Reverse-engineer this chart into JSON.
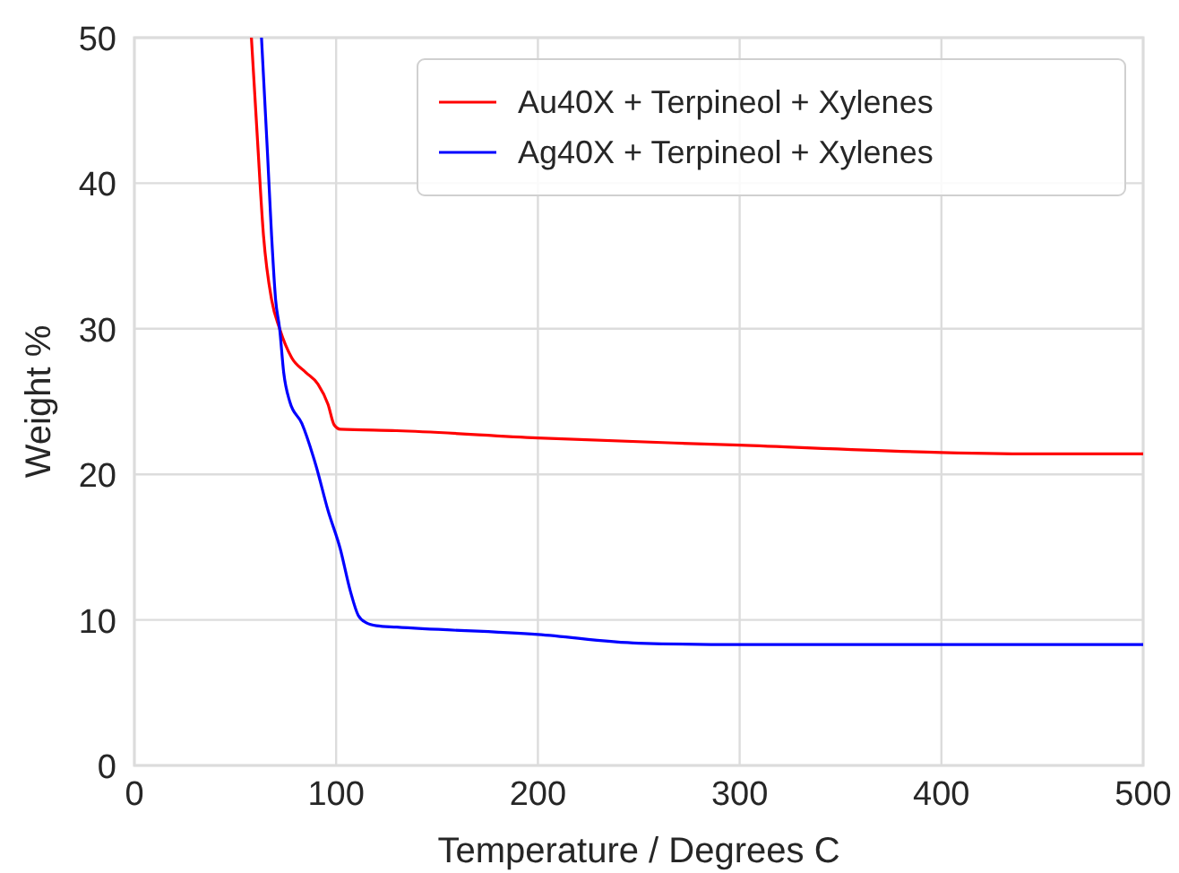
{
  "chart_data": {
    "type": "line",
    "xlabel": "Temperature / Degrees C",
    "ylabel": "Weight %",
    "xlim": [
      0,
      500
    ],
    "ylim": [
      0,
      50
    ],
    "xticks": [
      0,
      100,
      200,
      300,
      400,
      500
    ],
    "yticks": [
      0,
      10,
      20,
      30,
      40,
      50
    ],
    "grid": true,
    "legend": "top right",
    "marker": "none",
    "line_style": "solid",
    "series": [
      {
        "name": "Au40X + Terpineol + Xylenes",
        "color": "#ff0000",
        "x": [
          58,
          61,
          64,
          68,
          72,
          78,
          85,
          91,
          96,
          99,
          102,
          130,
          200,
          300,
          400,
          450,
          500
        ],
        "values": [
          50,
          43,
          36.4,
          32,
          30,
          28,
          27,
          26.2,
          24.8,
          23.4,
          23.1,
          23,
          22.5,
          22,
          21.5,
          21.4,
          21.4
        ]
      },
      {
        "name": "Ag40X + Terpineol + Xylenes",
        "color": "#0000ff",
        "x": [
          63,
          66,
          68,
          70,
          72,
          74,
          77,
          83,
          90,
          96,
          102,
          107,
          111,
          115,
          120,
          130,
          200,
          250,
          300,
          400,
          500
        ],
        "values": [
          50,
          42,
          36.4,
          32,
          30,
          27,
          25,
          23.5,
          20.6,
          17.5,
          14.9,
          12,
          10.3,
          9.8,
          9.6,
          9.5,
          9,
          8.4,
          8.3,
          8.3,
          8.3
        ]
      }
    ]
  }
}
